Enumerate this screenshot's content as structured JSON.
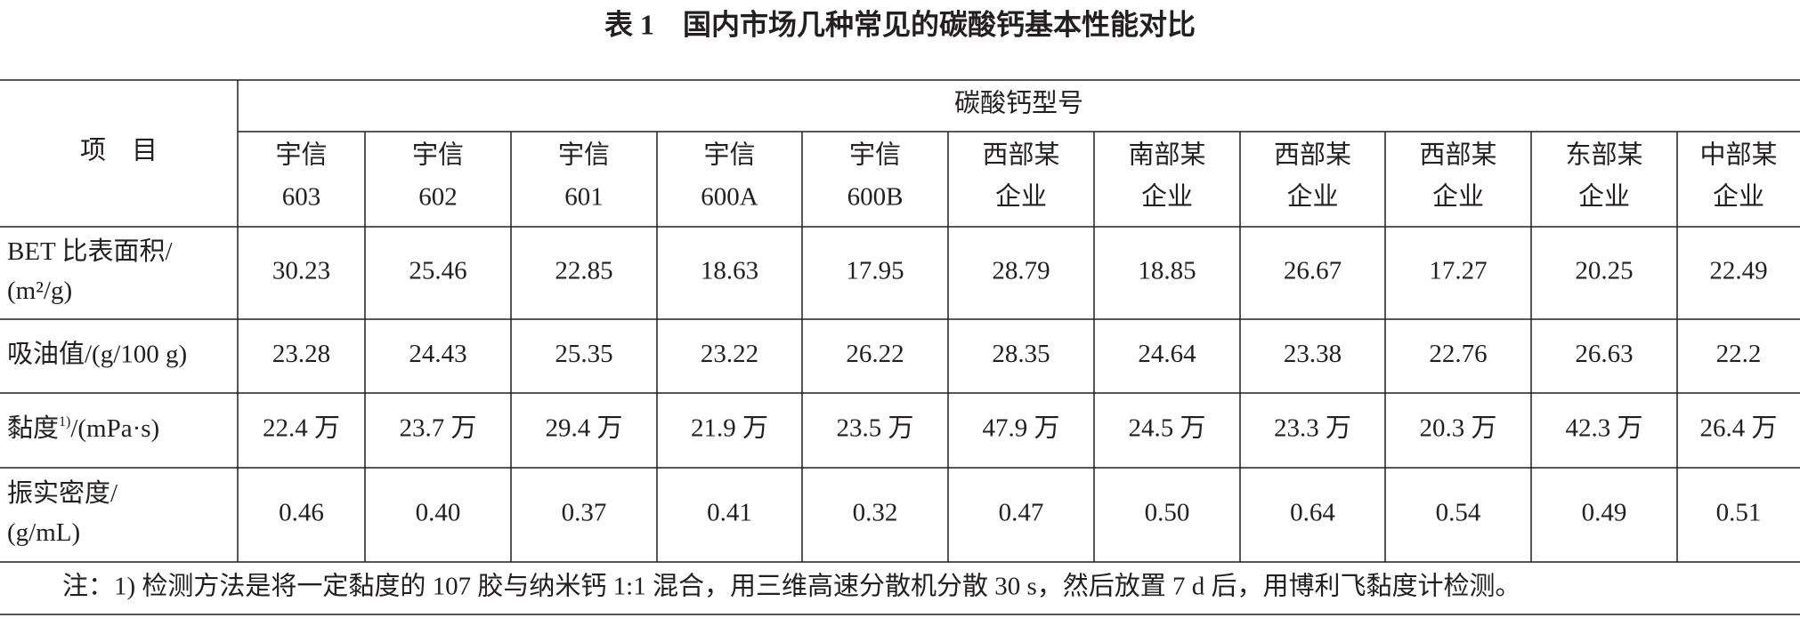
{
  "title": "表 1　国内市场几种常见的碳酸钙基本性能对比",
  "table": {
    "corner": "项　目",
    "group_header": "碳酸钙型号",
    "columns": [
      [
        "宇信",
        "603"
      ],
      [
        "宇信",
        "602"
      ],
      [
        "宇信",
        "601"
      ],
      [
        "宇信",
        "600A"
      ],
      [
        "宇信",
        "600B"
      ],
      [
        "西部某",
        "企业"
      ],
      [
        "南部某",
        "企业"
      ],
      [
        "西部某",
        "企业"
      ],
      [
        "西部某",
        "企业"
      ],
      [
        "东部某",
        "企业"
      ],
      [
        "中部某",
        "企业"
      ]
    ],
    "rows": [
      {
        "label": [
          "BET 比表面积/",
          "(m²/g)"
        ],
        "values": [
          "30.23",
          "25.46",
          "22.85",
          "18.63",
          "17.95",
          "28.79",
          "18.85",
          "26.67",
          "17.27",
          "20.25",
          "22.49"
        ]
      },
      {
        "label": [
          "吸油值/(g/100 g)"
        ],
        "values": [
          "23.28",
          "24.43",
          "25.35",
          "23.22",
          "26.22",
          "28.35",
          "24.64",
          "23.38",
          "22.76",
          "26.63",
          "22.2"
        ]
      },
      {
        "label": [
          "黏度"
        ],
        "note": "1)",
        "unit": "/(mPa·s)",
        "values": [
          "22.4 万",
          "23.7 万",
          "29.4 万",
          "21.9 万",
          "23.5 万",
          "47.9 万",
          "24.5 万",
          "23.3 万",
          "20.3 万",
          "42.3 万",
          "26.4 万"
        ]
      },
      {
        "label": [
          "振实密度/",
          "(g/mL)"
        ],
        "values": [
          "0.46",
          "0.40",
          "0.37",
          "0.41",
          "0.32",
          "0.47",
          "0.50",
          "0.64",
          "0.54",
          "0.49",
          "0.51"
        ]
      }
    ],
    "footnote": "注：1) 检测方法是将一定黏度的 107 胶与纳米钙 1:1 混合，用三维高速分散机分散 30 s，然后放置 7 d 后，用博利飞黏度计检测。"
  }
}
